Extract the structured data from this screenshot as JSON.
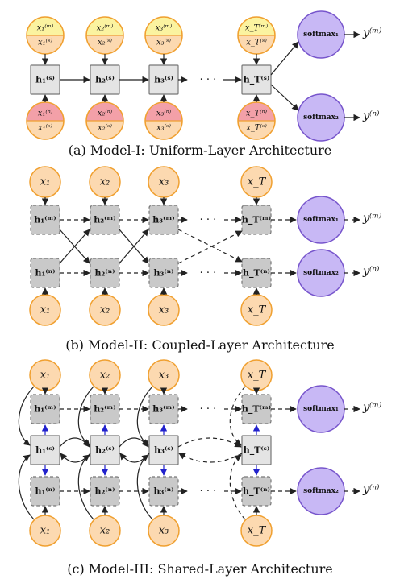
{
  "panels": {
    "a": {
      "caption": "(a) Model-I: Uniform-Layer Architecture",
      "inputs_top": [
        {
          "top": "x₁⁽ᵐ⁾",
          "bottom": "x₁⁽ˢ⁾"
        },
        {
          "top": "x₂⁽ᵐ⁾",
          "bottom": "x₂⁽ˢ⁾"
        },
        {
          "top": "x₃⁽ᵐ⁾",
          "bottom": "x₃⁽ˢ⁾"
        },
        {
          "top": "x_T⁽ᵐ⁾",
          "bottom": "x_T⁽ˢ⁾"
        }
      ],
      "inputs_bottom": [
        {
          "top": "x₁⁽ⁿ⁾",
          "bottom": "x₁⁽ˢ⁾"
        },
        {
          "top": "x₂⁽ⁿ⁾",
          "bottom": "x₂⁽ˢ⁾"
        },
        {
          "top": "x₃⁽ⁿ⁾",
          "bottom": "x₃⁽ˢ⁾"
        },
        {
          "top": "x_T⁽ⁿ⁾",
          "bottom": "x_T⁽ˢ⁾"
        }
      ],
      "hidden": [
        "h₁⁽ˢ⁾",
        "h₂⁽ˢ⁾",
        "h₃⁽ˢ⁾",
        "h_T⁽ˢ⁾"
      ],
      "softmax": [
        "softmax₁",
        "softmax₂"
      ],
      "outputs": [
        "y⁽ᵐ⁾",
        "y⁽ⁿ⁾"
      ],
      "ellipsis": "· · ·"
    },
    "b": {
      "caption": "(b) Model-II: Coupled-Layer Architecture",
      "inputs_top": [
        "x₁",
        "x₂",
        "x₃",
        "x_T"
      ],
      "inputs_bottom": [
        "x₁",
        "x₂",
        "x₃",
        "x_T"
      ],
      "hidden_m": [
        "h₁⁽ᵐ⁾",
        "h₂⁽ᵐ⁾",
        "h₃⁽ᵐ⁾",
        "h_T⁽ᵐ⁾"
      ],
      "hidden_n": [
        "h₁⁽ⁿ⁾",
        "h₂⁽ⁿ⁾",
        "h₃⁽ⁿ⁾",
        "h_T⁽ⁿ⁾"
      ],
      "softmax": [
        "softmax₁",
        "softmax₂"
      ],
      "outputs": [
        "y⁽ᵐ⁾",
        "y⁽ⁿ⁾"
      ],
      "ellipsis": "· · ·"
    },
    "c": {
      "caption": "(c) Model-III: Shared-Layer Architecture",
      "inputs_top": [
        "x₁",
        "x₂",
        "x₃",
        "x_T"
      ],
      "inputs_bottom": [
        "x₁",
        "x₂",
        "x₃",
        "x_T"
      ],
      "hidden_m": [
        "h₁⁽ᵐ⁾",
        "h₂⁽ᵐ⁾",
        "h₃⁽ᵐ⁾",
        "h_T⁽ᵐ⁾"
      ],
      "hidden_s": [
        "h₁⁽ˢ⁾",
        "h₂⁽ˢ⁾",
        "h₃⁽ˢ⁾",
        "h_T⁽ˢ⁾"
      ],
      "hidden_n": [
        "h₁⁽ⁿ⁾",
        "h₂⁽ⁿ⁾",
        "h₃⁽ⁿ⁾",
        "h_T⁽ⁿ⁾"
      ],
      "softmax": [
        "softmax₁",
        "softmax₂"
      ],
      "outputs": [
        "y⁽ᵐ⁾",
        "y⁽ⁿ⁾"
      ],
      "ellipsis": "· · ·"
    }
  },
  "colors": {
    "input_fill": "#fcd9b0",
    "input_stroke": "#f0a030",
    "input_m_fill": "#fbf3a0",
    "input_n_fill": "#f3a0a8",
    "hidden_fill": "#e4e4e4",
    "hidden_shaded_fill": "#c9c9c9",
    "hidden_stroke": "#777777",
    "softmax_fill": "#c8b8f5",
    "softmax_stroke": "#7755cc",
    "coupling_arrow": "#2222cc"
  }
}
